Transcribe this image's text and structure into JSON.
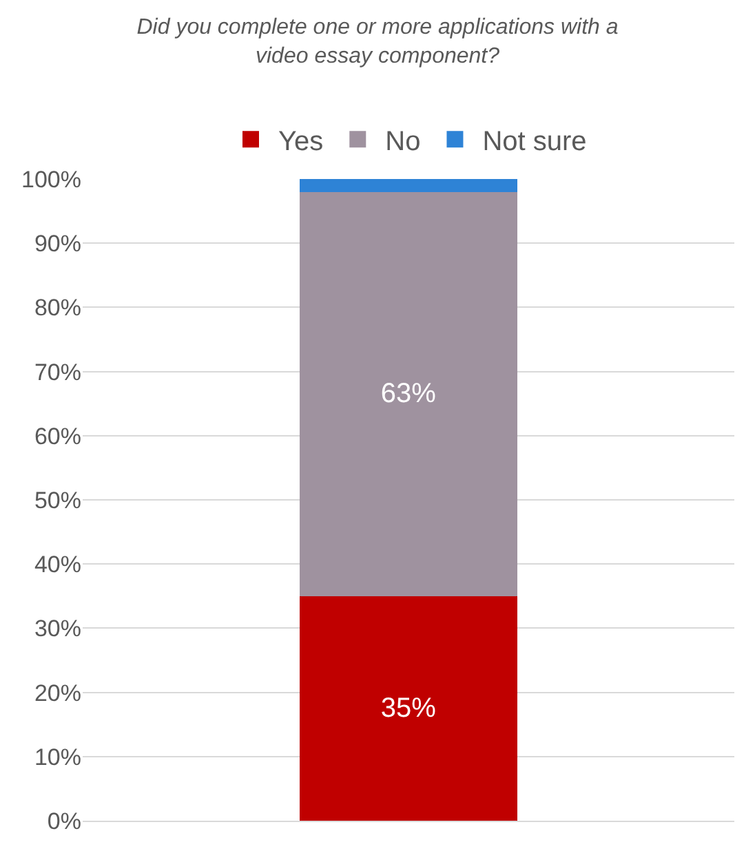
{
  "chart_data": {
    "type": "bar",
    "stacked": true,
    "title": "Did you complete one or more applications with a video essay component?",
    "categories": [
      null
    ],
    "series": [
      {
        "name": "Yes",
        "color": "#c00000",
        "values": [
          35
        ],
        "value_labels": [
          "35%"
        ]
      },
      {
        "name": "No",
        "color": "#9f929f",
        "values": [
          63
        ],
        "value_labels": [
          "63%"
        ]
      },
      {
        "name": "Not sure",
        "color": "#2e83d6",
        "values": [
          2
        ],
        "value_labels": [
          null
        ]
      }
    ],
    "ylim": [
      0,
      100
    ],
    "yticks": [
      {
        "value": 0,
        "label": "0%"
      },
      {
        "value": 10,
        "label": "10%"
      },
      {
        "value": 20,
        "label": "20%"
      },
      {
        "value": 30,
        "label": "30%"
      },
      {
        "value": 40,
        "label": "40%"
      },
      {
        "value": 50,
        "label": "50%"
      },
      {
        "value": 60,
        "label": "60%"
      },
      {
        "value": 70,
        "label": "70%"
      },
      {
        "value": 80,
        "label": "80%"
      },
      {
        "value": 90,
        "label": "90%"
      },
      {
        "value": 100,
        "label": "100%"
      }
    ],
    "grid": "y",
    "legend": "top"
  }
}
